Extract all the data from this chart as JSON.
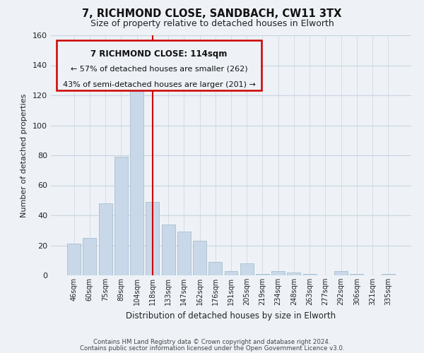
{
  "title_line1": "7, RICHMOND CLOSE, SANDBACH, CW11 3TX",
  "title_line2": "Size of property relative to detached houses in Elworth",
  "xlabel": "Distribution of detached houses by size in Elworth",
  "ylabel": "Number of detached properties",
  "bar_labels": [
    "46sqm",
    "60sqm",
    "75sqm",
    "89sqm",
    "104sqm",
    "118sqm",
    "133sqm",
    "147sqm",
    "162sqm",
    "176sqm",
    "191sqm",
    "205sqm",
    "219sqm",
    "234sqm",
    "248sqm",
    "263sqm",
    "277sqm",
    "292sqm",
    "306sqm",
    "321sqm",
    "335sqm"
  ],
  "bar_values": [
    21,
    25,
    48,
    79,
    126,
    49,
    34,
    29,
    23,
    9,
    3,
    8,
    1,
    3,
    2,
    1,
    0,
    3,
    1,
    0,
    1
  ],
  "bar_color": "#c8d8e8",
  "bar_edge_color": "#a8bece",
  "highlight_line_color": "#cc0000",
  "highlight_bar_index": 5,
  "annotation_text_line1": "7 RICHMOND CLOSE: 114sqm",
  "annotation_text_line2": "← 57% of detached houses are smaller (262)",
  "annotation_text_line3": "43% of semi-detached houses are larger (201) →",
  "box_edge_color": "#cc0000",
  "ylim": [
    0,
    160
  ],
  "yticks": [
    0,
    20,
    40,
    60,
    80,
    100,
    120,
    140,
    160
  ],
  "footer_line1": "Contains HM Land Registry data © Crown copyright and database right 2024.",
  "footer_line2": "Contains public sector information licensed under the Open Government Licence v3.0.",
  "bg_color": "#eef2f7",
  "plot_bg_color": "#eef2f7",
  "grid_color": "#c8d4e0"
}
